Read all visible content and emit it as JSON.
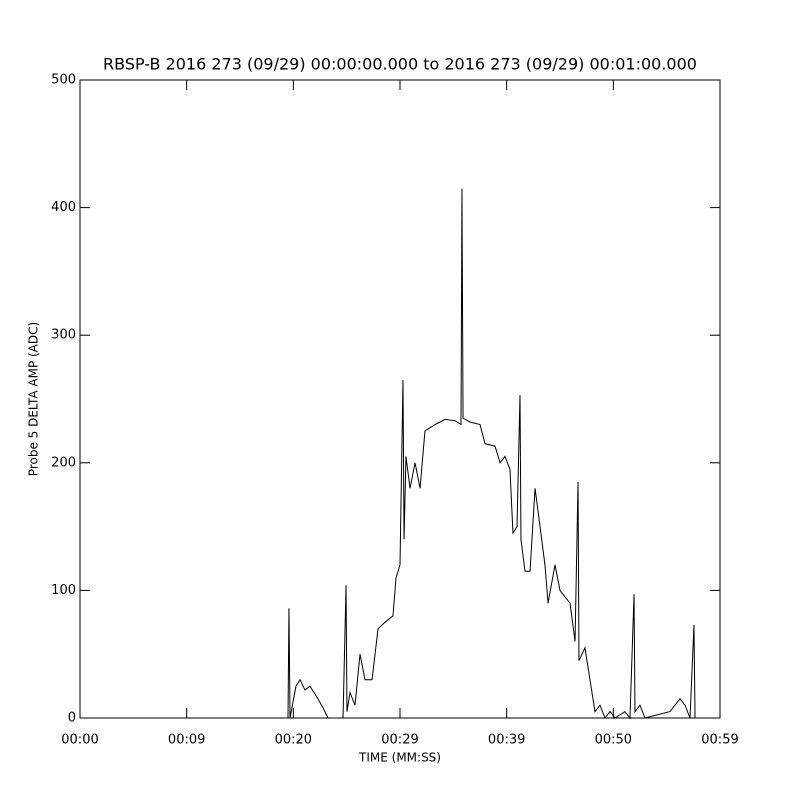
{
  "chart_data": {
    "type": "line",
    "title": "RBSP-B 2016 273 (09/29) 00:00:00.000 to 2016 273 (09/29) 00:01:00.000",
    "x_label": "TIME (MM:SS)",
    "y_label": "Probe 5 DELTA AMP (ADC)",
    "xlim": [
      0,
      60
    ],
    "xticks": [
      {
        "value": 0,
        "label": "00:00"
      },
      {
        "value": 10,
        "label": "00:09"
      },
      {
        "value": 20,
        "label": "00:20"
      },
      {
        "value": 30,
        "label": "00:29"
      },
      {
        "value": 40,
        "label": "00:39"
      },
      {
        "value": 50,
        "label": "00:50"
      },
      {
        "value": 60,
        "label": "00:59"
      }
    ],
    "ylim": [
      0,
      500
    ],
    "yticks": [
      0,
      100,
      200,
      300,
      400,
      500
    ],
    "color": "#000000",
    "x": [
      0,
      19.5,
      19.59,
      19.69,
      20.25,
      20.63,
      21.09,
      21.56,
      22.31,
      22.78,
      23.25,
      24.66,
      24.94,
      25.03,
      25.31,
      25.78,
      26.25,
      26.72,
      27.38,
      27.94,
      28.59,
      29.34,
      29.63,
      30.0,
      30.28,
      30.38,
      30.56,
      30.94,
      31.41,
      31.88,
      32.34,
      33.28,
      34.22,
      35.16,
      35.72,
      35.81,
      35.91,
      36.56,
      37.5,
      37.97,
      38.91,
      39.38,
      39.84,
      40.31,
      40.59,
      40.97,
      41.25,
      41.34,
      41.72,
      42.19,
      42.66,
      43.13,
      43.59,
      43.88,
      44.53,
      45.0,
      45.47,
      45.94,
      46.41,
      46.69,
      46.78,
      47.34,
      47.81,
      48.28,
      48.75,
      49.22,
      49.69,
      50.16,
      51.09,
      51.56,
      51.94,
      52.03,
      52.5,
      52.97,
      55.31,
      56.25,
      56.72,
      57.19,
      57.56,
      57.66,
      57.8
    ],
    "values": [
      0,
      0,
      86,
      0,
      25,
      30,
      22,
      25,
      15,
      8,
      0,
      0,
      104,
      5,
      20,
      10,
      50,
      30,
      30,
      70,
      75,
      80,
      110,
      120,
      265,
      140,
      205,
      180,
      200,
      180,
      225,
      230,
      234,
      233,
      230,
      415,
      235,
      232,
      230,
      215,
      213,
      200,
      205,
      195,
      145,
      150,
      253,
      140,
      115,
      115,
      180,
      150,
      120,
      90,
      120,
      100,
      95,
      90,
      60,
      185,
      45,
      55,
      30,
      5,
      10,
      0,
      5,
      0,
      5,
      0,
      97,
      5,
      10,
      0,
      5,
      15,
      10,
      0,
      73,
      0,
      0
    ]
  }
}
